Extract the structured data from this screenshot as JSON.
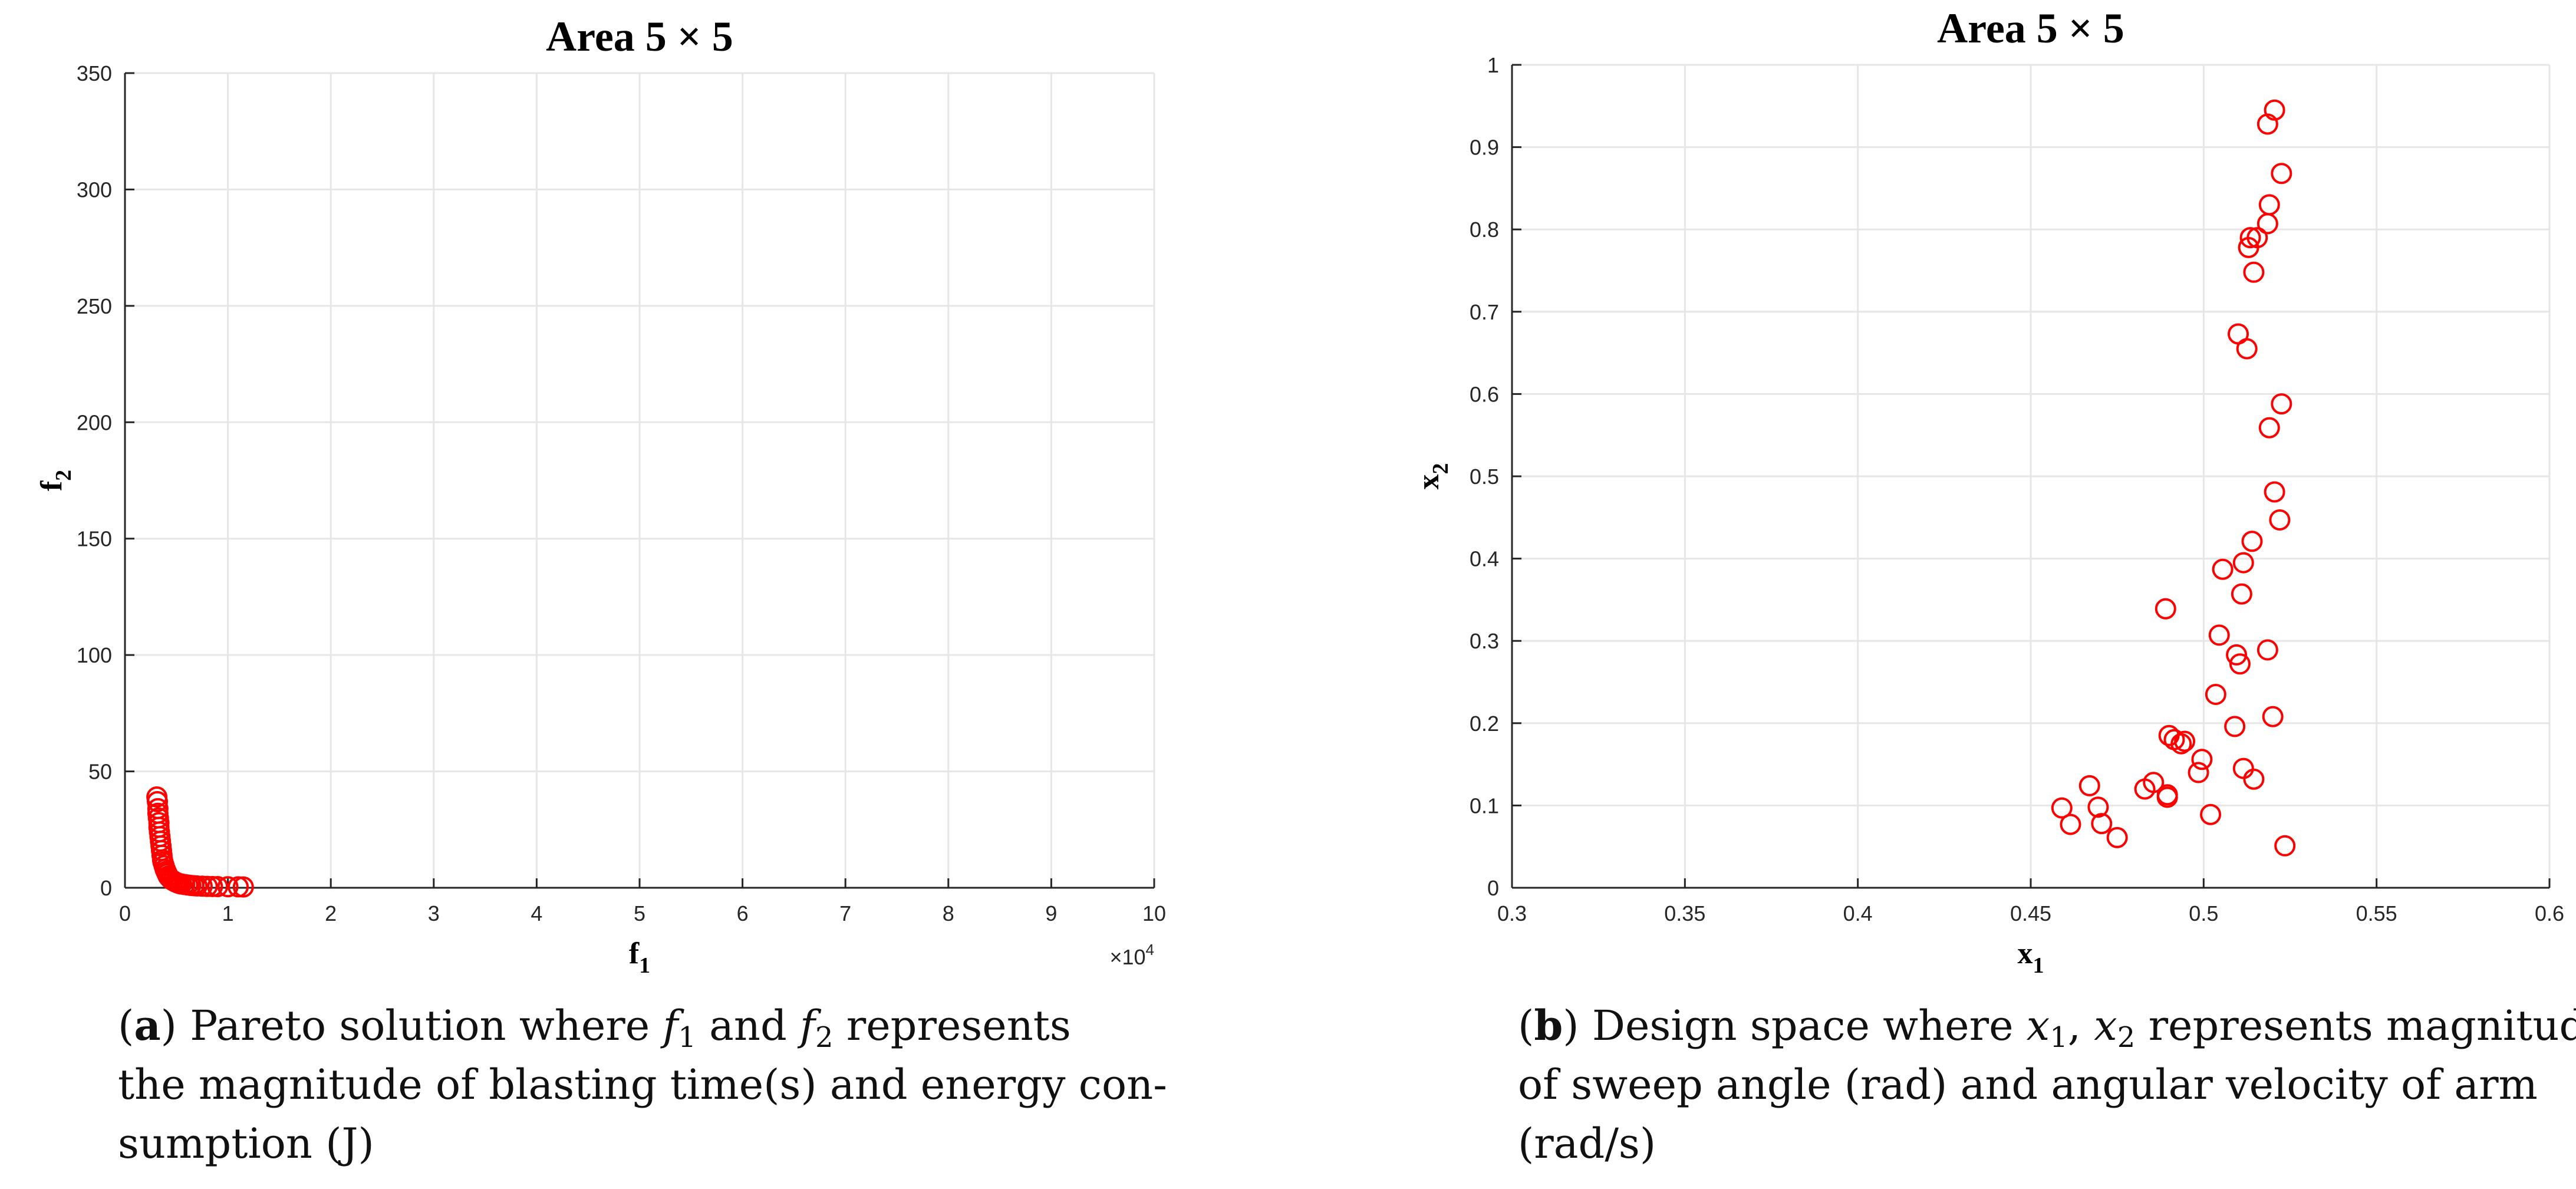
{
  "chart_data": [
    {
      "type": "scatter",
      "title": "Area 5 × 5",
      "xlabel": "f",
      "xlabel_sub": "1",
      "ylabel": "f",
      "ylabel_sub": "2",
      "xlim": [
        0,
        100000
      ],
      "ylim": [
        0,
        350
      ],
      "xticks": [
        0,
        10000,
        20000,
        30000,
        40000,
        50000,
        60000,
        70000,
        80000,
        90000,
        100000
      ],
      "xtick_labels": [
        "0",
        "1",
        "2",
        "3",
        "4",
        "5",
        "6",
        "7",
        "8",
        "9",
        "10"
      ],
      "x_exponent_label": "×10",
      "x_exponent_power": "4",
      "yticks": [
        0,
        50,
        100,
        150,
        200,
        250,
        300,
        350
      ],
      "ytick_labels": [
        "0",
        "50",
        "100",
        "150",
        "200",
        "250",
        "300",
        "350"
      ],
      "grid": true,
      "marker_color": "#ff0000",
      "series": [
        {
          "marker": "open-circle",
          "points": [
            [
              3100,
              39
            ],
            [
              3150,
              37
            ],
            [
              3200,
              34
            ],
            [
              3200,
              32
            ],
            [
              3250,
              30
            ],
            [
              3300,
              28
            ],
            [
              3300,
              26
            ],
            [
              3350,
              24
            ],
            [
              3400,
              22
            ],
            [
              3450,
              20
            ],
            [
              3500,
              18
            ],
            [
              3550,
              16
            ],
            [
              3600,
              14
            ],
            [
              3650,
              12
            ],
            [
              3700,
              11
            ],
            [
              3800,
              9.5
            ],
            [
              3900,
              8
            ],
            [
              4000,
              7
            ],
            [
              4100,
              6
            ],
            [
              4200,
              5
            ],
            [
              4350,
              4.2
            ],
            [
              4500,
              3.5
            ],
            [
              4700,
              3
            ],
            [
              4900,
              2.5
            ],
            [
              5100,
              2.1
            ],
            [
              5300,
              1.8
            ],
            [
              5500,
              1.6
            ],
            [
              5800,
              1.4
            ],
            [
              6100,
              1.2
            ],
            [
              6400,
              1.0
            ],
            [
              6700,
              0.9
            ],
            [
              7000,
              0.8
            ],
            [
              7500,
              0.7
            ],
            [
              8000,
              0.6
            ],
            [
              8500,
              0.55
            ],
            [
              9000,
              0.5
            ],
            [
              10000,
              0.45
            ],
            [
              11000,
              0.4
            ],
            [
              11500,
              0.35
            ]
          ]
        }
      ]
    },
    {
      "type": "scatter",
      "title": "Area 5 × 5",
      "xlabel": "x",
      "xlabel_sub": "1",
      "ylabel": "x",
      "ylabel_sub": "2",
      "xlim": [
        0.3,
        0.6
      ],
      "ylim": [
        0,
        1
      ],
      "xticks": [
        0.3,
        0.35,
        0.4,
        0.45,
        0.5,
        0.55,
        0.6
      ],
      "xtick_labels": [
        "0.3",
        "0.35",
        "0.4",
        "0.45",
        "0.5",
        "0.55",
        "0.6"
      ],
      "yticks": [
        0,
        0.1,
        0.2,
        0.3,
        0.4,
        0.5,
        0.6,
        0.7,
        0.8,
        0.9,
        1
      ],
      "ytick_labels": [
        "0",
        "0.1",
        "0.2",
        "0.3",
        "0.4",
        "0.5",
        "0.6",
        "0.7",
        "0.8",
        "0.9",
        "1"
      ],
      "grid": true,
      "marker_color": "#ff0000",
      "series": [
        {
          "marker": "open-circle",
          "points": [
            [
              0.5205,
              0.945
            ],
            [
              0.5185,
              0.928
            ],
            [
              0.5225,
              0.868
            ],
            [
              0.519,
              0.83
            ],
            [
              0.5135,
              0.79
            ],
            [
              0.5155,
              0.79
            ],
            [
              0.513,
              0.778
            ],
            [
              0.5185,
              0.807
            ],
            [
              0.5145,
              0.748
            ],
            [
              0.51,
              0.673
            ],
            [
              0.5125,
              0.655
            ],
            [
              0.5225,
              0.588
            ],
            [
              0.519,
              0.559
            ],
            [
              0.5205,
              0.481
            ],
            [
              0.522,
              0.447
            ],
            [
              0.514,
              0.421
            ],
            [
              0.5115,
              0.395
            ],
            [
              0.5055,
              0.387
            ],
            [
              0.511,
              0.357
            ],
            [
              0.489,
              0.339
            ],
            [
              0.5045,
              0.307
            ],
            [
              0.5095,
              0.283
            ],
            [
              0.5105,
              0.272
            ],
            [
              0.5185,
              0.289
            ],
            [
              0.5035,
              0.235
            ],
            [
              0.52,
              0.208
            ],
            [
              0.509,
              0.196
            ],
            [
              0.49,
              0.185
            ],
            [
              0.4915,
              0.18
            ],
            [
              0.4945,
              0.178
            ],
            [
              0.4935,
              0.175
            ],
            [
              0.4995,
              0.156
            ],
            [
              0.4985,
              0.14
            ],
            [
              0.5115,
              0.145
            ],
            [
              0.5145,
              0.132
            ],
            [
              0.467,
              0.124
            ],
            [
              0.4855,
              0.128
            ],
            [
              0.483,
              0.12
            ],
            [
              0.4895,
              0.113
            ],
            [
              0.4895,
              0.11
            ],
            [
              0.459,
              0.097
            ],
            [
              0.4695,
              0.098
            ],
            [
              0.502,
              0.089
            ],
            [
              0.4615,
              0.077
            ],
            [
              0.4705,
              0.078
            ],
            [
              0.475,
              0.061
            ],
            [
              0.5235,
              0.051
            ]
          ]
        }
      ]
    }
  ],
  "captions": {
    "left": {
      "label": "a",
      "lines": [
        [
          "Pareto solution where ",
          "f1",
          " and ",
          "f2",
          " represents"
        ],
        [
          "the magnitude of blasting time(s) and energy con-"
        ],
        [
          "sumption (J)"
        ]
      ]
    },
    "right": {
      "label": "b",
      "lines": [
        [
          "Design space where ",
          "x1",
          ", ",
          "x2",
          " represents magnitude"
        ],
        [
          "of sweep angle (rad) and angular velocity of arm"
        ],
        [
          "(rad/s)"
        ]
      ]
    }
  }
}
